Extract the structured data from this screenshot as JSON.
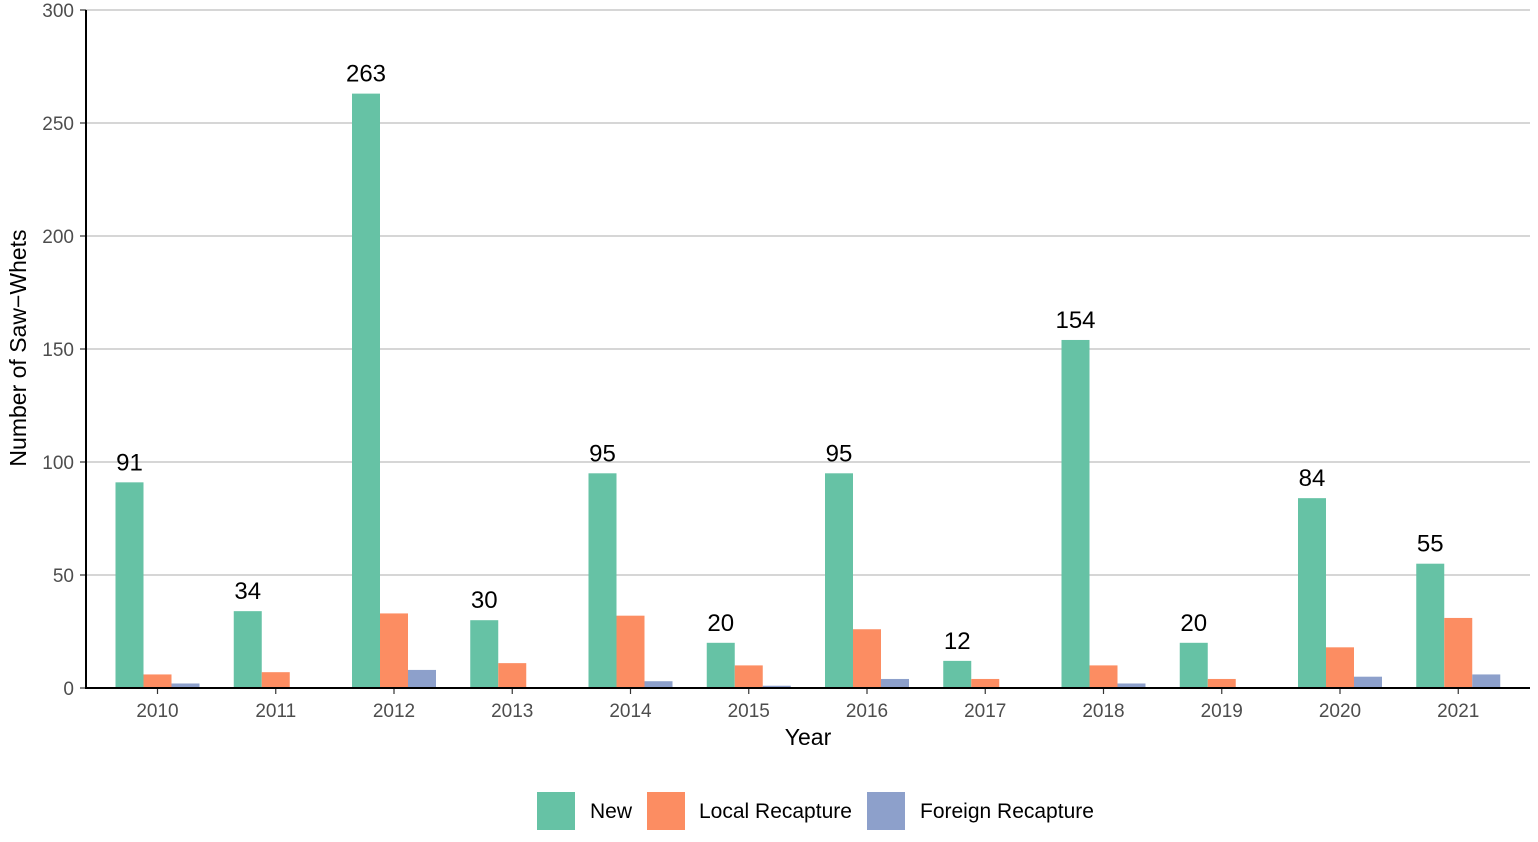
{
  "chart_data": {
    "type": "bar",
    "title": "",
    "xlabel": "Year",
    "ylabel": "Number of Saw−Whets",
    "ylim": [
      0,
      300
    ],
    "yticks": [
      0,
      50,
      100,
      150,
      200,
      250,
      300
    ],
    "grid": true,
    "legend_position": "bottom",
    "categories": [
      "2010",
      "2011",
      "2012",
      "2013",
      "2014",
      "2015",
      "2016",
      "2017",
      "2018",
      "2019",
      "2020",
      "2021"
    ],
    "series": [
      {
        "name": "New",
        "color": "#66c2a5",
        "values": [
          91,
          34,
          263,
          30,
          95,
          20,
          95,
          12,
          154,
          20,
          84,
          55
        ]
      },
      {
        "name": "Local Recapture",
        "color": "#fc8d62",
        "values": [
          6,
          7,
          33,
          11,
          32,
          10,
          26,
          4,
          10,
          4,
          18,
          31
        ]
      },
      {
        "name": "Foreign Recapture",
        "color": "#8da0cb",
        "values": [
          2,
          0,
          8,
          0,
          3,
          1,
          4,
          0,
          2,
          0,
          5,
          6
        ]
      }
    ],
    "data_labels": {
      "series": "New",
      "values": [
        "91",
        "34",
        "263",
        "30",
        "95",
        "20",
        "95",
        "12",
        "154",
        "20",
        "84",
        "55"
      ]
    }
  }
}
